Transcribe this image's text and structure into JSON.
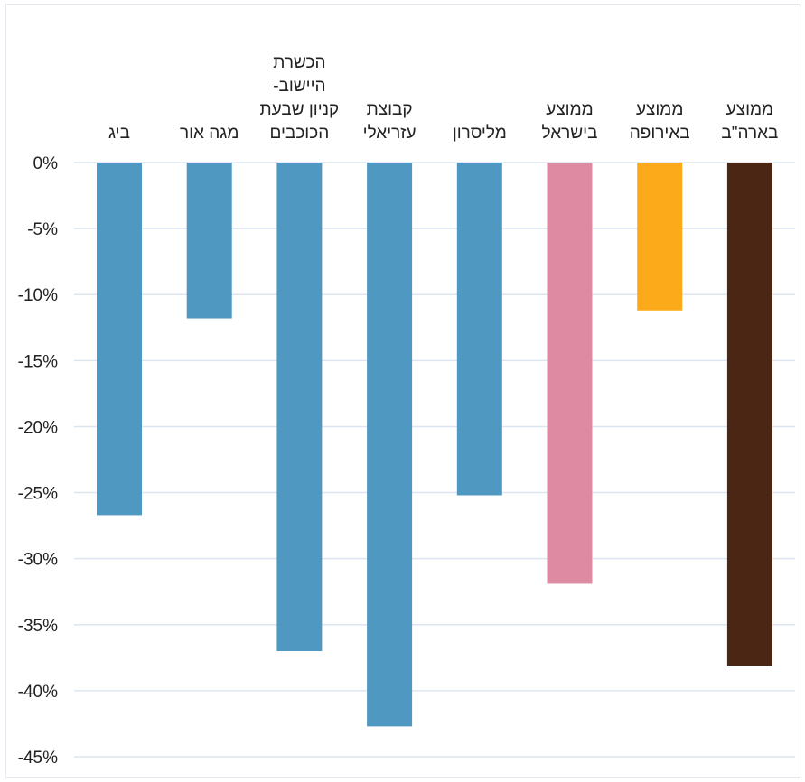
{
  "chart_data": {
    "type": "bar",
    "categories": [
      [
        "ביג"
      ],
      [
        "מגה אור"
      ],
      [
        "הכשרת",
        "היישוב-",
        "קניון שבעת",
        "הכוכבים"
      ],
      [
        "קבוצת",
        "עזריאלי"
      ],
      [
        "מליסרון"
      ],
      [
        "ממוצע",
        "בישראל"
      ],
      [
        "ממוצע",
        "באירופה"
      ],
      [
        "ממוצע",
        "בארה\"ב"
      ]
    ],
    "values": [
      -26.7,
      -11.8,
      -37.0,
      -42.7,
      -25.2,
      -31.9,
      -11.2,
      -38.1
    ],
    "bar_colors": [
      "#4f98c2",
      "#4f98c2",
      "#4f98c2",
      "#4f98c2",
      "#4f98c2",
      "#df8aa3",
      "#fcaa19",
      "#4c2615"
    ],
    "ylim": [
      -45,
      0
    ],
    "yticks": [
      0,
      -5,
      -10,
      -15,
      -20,
      -25,
      -30,
      -35,
      -40,
      -45
    ],
    "ytick_labels": [
      "0%",
      "-5%",
      "-10%",
      "-15%",
      "-20%",
      "-25%",
      "-30%",
      "-35%",
      "-40%",
      "-45%"
    ],
    "grid": true,
    "gridline_color": "#dde6f0"
  }
}
